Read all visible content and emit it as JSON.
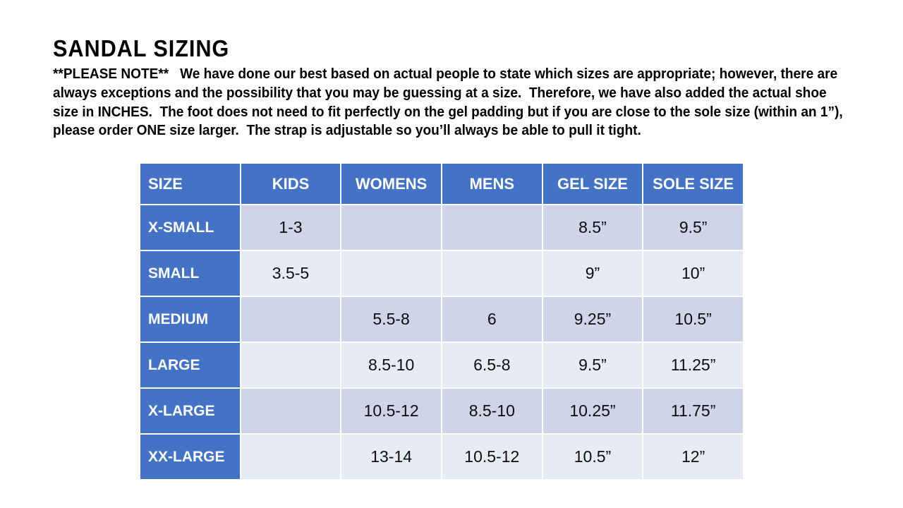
{
  "title": "SANDAL SIZING",
  "note_lines": [
    "**PLEASE NOTE**   We have done our best based on actual people to state which sizes are appropriate; however, there are",
    "always exceptions and the possibility that you may be guessing at a size.  Therefore, we have also added the actual shoe",
    "size in INCHES.  The foot does not need to fit perfectly on the gel padding but if you are close to the sole size (within an 1”),",
    "please order ONE size larger.  The strap is adjustable so you’ll always be able to pull it tight."
  ],
  "table": {
    "columns": [
      "SIZE",
      "KIDS",
      "WOMENS",
      "MENS",
      "GEL SIZE",
      "SOLE SIZE"
    ],
    "rows": [
      {
        "label": "X-SMALL",
        "cells": [
          "1-3",
          "",
          "",
          "8.5”",
          "9.5”"
        ]
      },
      {
        "label": "SMALL",
        "cells": [
          "3.5-5",
          "",
          "",
          "9”",
          "10”"
        ]
      },
      {
        "label": "MEDIUM",
        "cells": [
          "",
          "5.5-8",
          "6",
          "9.25”",
          "10.5”"
        ]
      },
      {
        "label": "LARGE",
        "cells": [
          "",
          "8.5-10",
          "6.5-8",
          "9.5”",
          "11.25”"
        ]
      },
      {
        "label": "X-LARGE",
        "cells": [
          "",
          "10.5-12",
          "8.5-10",
          "10.25”",
          "11.75”"
        ]
      },
      {
        "label": "XX-LARGE",
        "cells": [
          "",
          "13-14",
          "10.5-12",
          "10.5”",
          "12”"
        ]
      }
    ]
  },
  "colors": {
    "header_blue": "#4472C4",
    "band_dark": "#CFD4E8",
    "band_light": "#E9EBF4",
    "gridline": "#FFFFFF",
    "header_text": "#FFFFFF",
    "body_text": "#000000"
  }
}
